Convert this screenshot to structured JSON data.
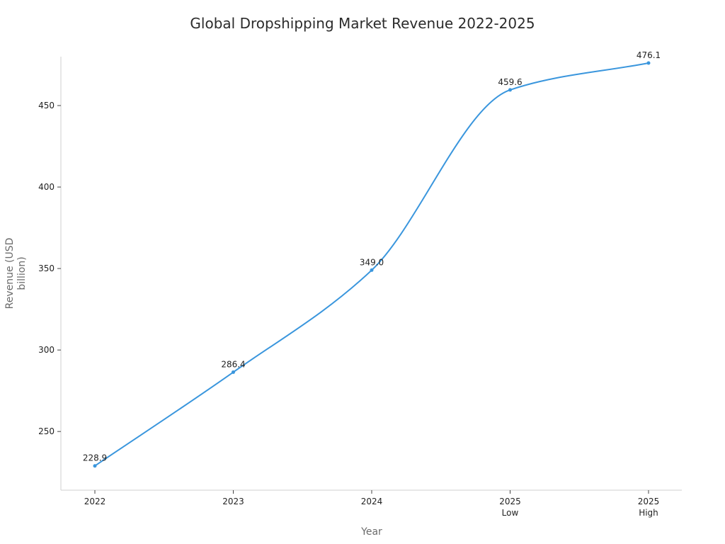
{
  "chart_data": {
    "type": "line",
    "title": "Global Dropshipping Market Revenue 2022-2025",
    "xlabel": "Year",
    "ylabel": "Revenue (USD billion)",
    "ylabel_lines": [
      "Revenue (USD",
      "billion)"
    ],
    "categories": [
      [
        "2022"
      ],
      [
        "2023"
      ],
      [
        "2024"
      ],
      [
        "2025",
        "Low"
      ],
      [
        "2025",
        "High"
      ]
    ],
    "series": [
      {
        "values": [
          228.9,
          286.4,
          349.0,
          459.6,
          476.1
        ],
        "color": "#3a96dd"
      }
    ],
    "data_labels": [
      "228.9",
      "286.4",
      "349.0",
      "459.6",
      "476.1"
    ],
    "yticks": [
      250,
      300,
      350,
      400,
      450
    ],
    "ylim": [
      214,
      480
    ],
    "grid": false,
    "legend": "none",
    "line_style": "smooth"
  }
}
